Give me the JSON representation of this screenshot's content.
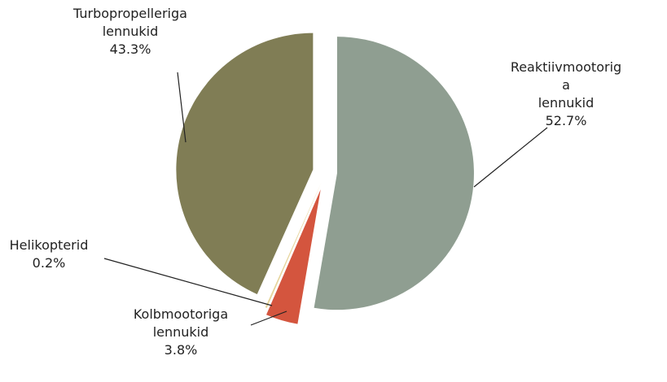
{
  "chart_data": {
    "type": "pie",
    "categories": [
      "Reaktiivmootoriga lennukid",
      "Kolbmootoriga lennukid",
      "Helikopterid",
      "Turbopropelleriga lennukid"
    ],
    "values": [
      52.7,
      3.8,
      0.2,
      43.3
    ],
    "value_labels": [
      "52.7%",
      "3.8%",
      "0.2%",
      "43.3%"
    ],
    "colors": [
      "#8f9e91",
      "#d4553e",
      "#e6d59c",
      "#807d55"
    ]
  }
}
